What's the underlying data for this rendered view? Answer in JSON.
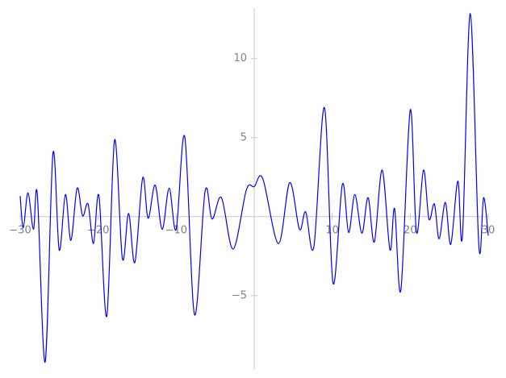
{
  "chart_data": {
    "type": "line",
    "x": [
      -30,
      -29.6,
      -29.0,
      -28.3,
      -27.8,
      -26.8,
      -25.8,
      -25.0,
      -24.2,
      -23.5,
      -22.7,
      -22.0,
      -21.3,
      -20.6,
      -19.9,
      -18.9,
      -17.9,
      -16.9,
      -16.1,
      -15.3,
      -14.3,
      -13.6,
      -12.7,
      -11.8,
      -10.9,
      -10.0,
      -8.9,
      -7.65,
      -6.3,
      -5.4,
      -4.2,
      -2.7,
      -1.0,
      0,
      1.1,
      3.1,
      4.55,
      5.8,
      6.6,
      7.65,
      9.0,
      10.1,
      11.3,
      12.1,
      12.9,
      13.8,
      14.6,
      15.4,
      16.4,
      17.4,
      18.0,
      18.8,
      20.0,
      20.8,
      21.7,
      22.4,
      23.1,
      23.7,
      24.5,
      25.2,
      26.1,
      26.7,
      27.7,
      28.8,
      29.4,
      30.0
    ],
    "series": [
      {
        "color": "#0000ff",
        "values": [
          1.3,
          -0.7,
          1.5,
          -0.8,
          1.4,
          -9.2,
          4.0,
          -2.1,
          1.4,
          -1.5,
          1.8,
          0.05,
          0.8,
          -1.7,
          1.3,
          -6.3,
          4.85,
          -2.65,
          0.2,
          -2.9,
          2.45,
          -0.1,
          2.0,
          -0.8,
          1.8,
          -0.8,
          5.05,
          -6.2,
          1.6,
          -0.15,
          1.2,
          -2.05,
          1.7,
          1.9,
          2.4,
          -1.7,
          2.15,
          -0.8,
          0.3,
          -1.9,
          6.9,
          -4.2,
          2.05,
          -1.0,
          1.4,
          -1.05,
          1.2,
          -1.6,
          2.95,
          -2.1,
          0.5,
          -4.65,
          6.75,
          -1.0,
          2.95,
          -0.15,
          0.8,
          -1.4,
          0.9,
          -1.75,
          2.25,
          -1.2,
          12.85,
          -1.9,
          1.2,
          -1.2
        ]
      }
    ],
    "xlim": [
      -30,
      30
    ],
    "ylim": [
      -9.65,
      13.2
    ],
    "xticks": [
      {
        "value": -30,
        "label": "−30"
      },
      {
        "value": -20,
        "label": "−20"
      },
      {
        "value": -10,
        "label": "−10"
      },
      10,
      20,
      30
    ],
    "yticks": [
      {
        "value": -5,
        "label": "−5"
      },
      5,
      10
    ]
  }
}
